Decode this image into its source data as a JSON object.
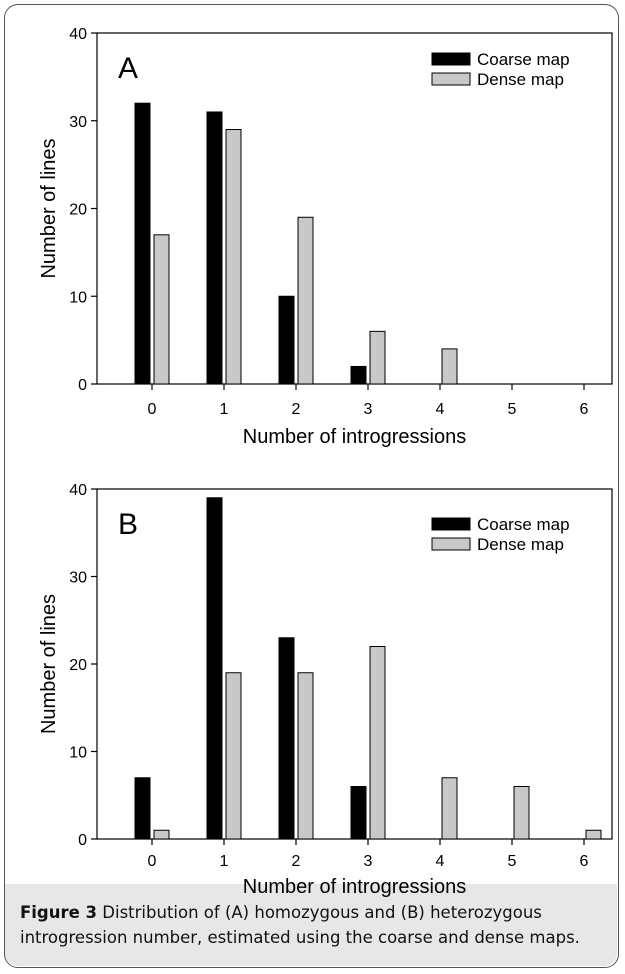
{
  "figure": {
    "caption_label": "Figure 3",
    "caption_text": "Distribution of (A) homozygous and (B) heterozygous introgression number, estimated using the coarse and dense maps."
  },
  "colors": {
    "coarse": "#000000",
    "dense": "#c8c8c8",
    "caption_band": "#e7e7e7"
  },
  "chart_data": [
    {
      "type": "bar",
      "panel_label": "A",
      "categories": [
        "0",
        "1",
        "2",
        "3",
        "4",
        "5",
        "6"
      ],
      "series": [
        {
          "name": "Coarse map",
          "values": [
            32,
            31,
            10,
            2,
            0,
            0,
            0
          ]
        },
        {
          "name": "Dense map",
          "values": [
            17,
            29,
            19,
            6,
            4,
            0,
            0
          ]
        }
      ],
      "xlabel": "Number of introgressions",
      "ylabel": "Number of lines",
      "ylim": [
        0,
        40
      ],
      "yticks": [
        0,
        10,
        20,
        30,
        40
      ],
      "grid": false,
      "legend": "top-right"
    },
    {
      "type": "bar",
      "panel_label": "B",
      "categories": [
        "0",
        "1",
        "2",
        "3",
        "4",
        "5",
        "6"
      ],
      "series": [
        {
          "name": "Coarse map",
          "values": [
            7,
            39,
            23,
            6,
            0,
            0,
            0
          ]
        },
        {
          "name": "Dense map",
          "values": [
            1,
            19,
            19,
            22,
            7,
            6,
            1
          ]
        }
      ],
      "xlabel": "Number of introgressions",
      "ylabel": "Number of lines",
      "ylim": [
        0,
        40
      ],
      "yticks": [
        0,
        10,
        20,
        30,
        40
      ],
      "grid": false,
      "legend": "top-right"
    }
  ]
}
